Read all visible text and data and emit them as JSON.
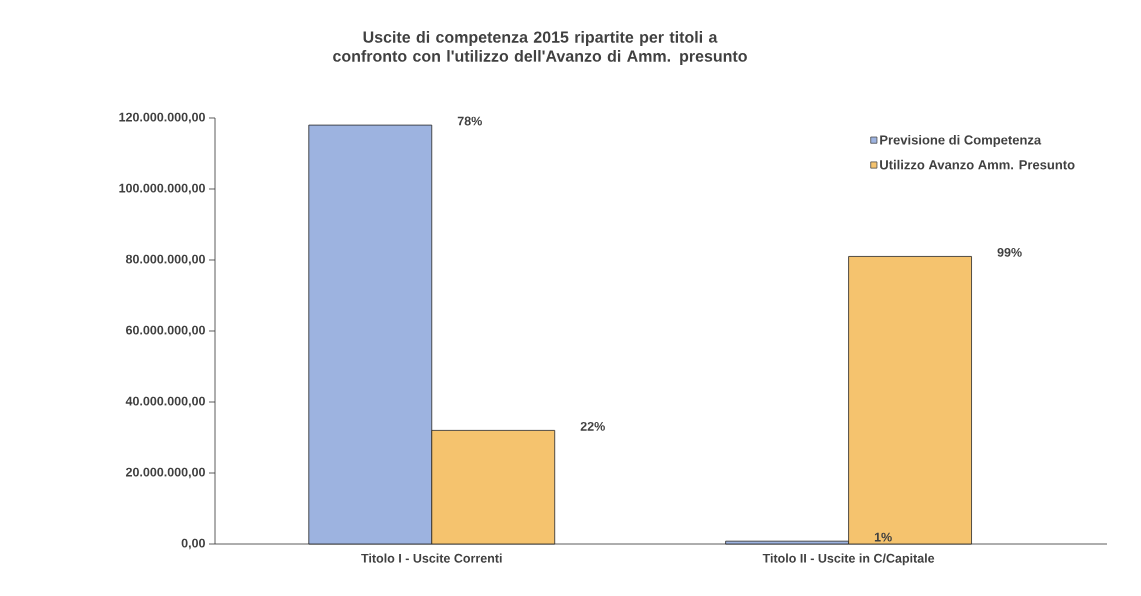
{
  "chart_data": {
    "type": "bar",
    "title": "Uscite di competenza 2015 ripartite per titoli a confronto con l'utilizzo dell'Avanzo di Amm. presunto",
    "categories": [
      "Titolo I - Uscite Correnti",
      "Titolo II - Uscite in C/Capitale"
    ],
    "series": [
      {
        "name": "Previsione di Competenza",
        "color": "#9db3e0",
        "values": [
          118000000,
          800000
        ]
      },
      {
        "name": "Utilizzo Avanzo Amm. Presunto",
        "color": "#f5c36e",
        "values": [
          32000000,
          81000000
        ]
      }
    ],
    "annotations": [
      "78%",
      "22%",
      "1%",
      "99%"
    ],
    "ylim": [
      0,
      120000000
    ],
    "yticks": [
      {
        "value": 0,
        "label": "0,00"
      },
      {
        "value": 20000000,
        "label": "20.000.000,00"
      },
      {
        "value": 40000000,
        "label": "40.000.000,00"
      },
      {
        "value": 60000000,
        "label": "60.000.000,00"
      },
      {
        "value": 80000000,
        "label": "80.000.000,00"
      },
      {
        "value": 100000000,
        "label": "100.000.000,00"
      },
      {
        "value": 120000000,
        "label": "120.000.000,00"
      }
    ],
    "legend": "top right",
    "grid": false
  }
}
